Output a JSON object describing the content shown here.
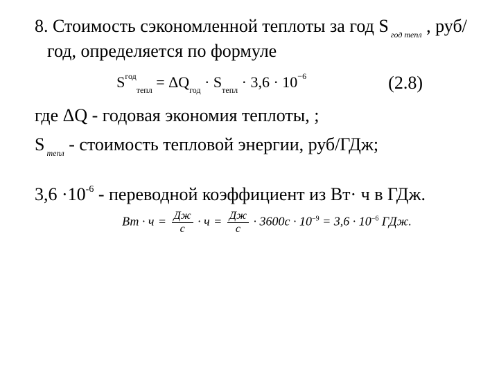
{
  "colors": {
    "text": "#000000",
    "background": "#ffffff"
  },
  "typography": {
    "body_fontsize_pt": 20,
    "eq_fontsize_pt": 16,
    "unit_eq_fontsize_pt": 13,
    "family": "Times New Roman"
  },
  "p1_a": "8. Стоимость сэкономленной теплоты за год S",
  "p1_sub": " год тепл",
  "p1_b": "  , руб/год, определяется по формуле",
  "eq_main_lhs_S": "S",
  "eq_main_lhs_sup": "год",
  "eq_main_lhs_sub": "тепл",
  "eq_main_eq": " = ",
  "eq_main_dQ": "ΔQ",
  "eq_main_dQ_sub": "год",
  "eq_main_dot1": " · ",
  "eq_main_S2": "S",
  "eq_main_S2_sub": "тепл",
  "eq_main_tail": " · 3,6 · 10",
  "eq_main_tail_sup": "−6",
  "eq_number": "(2.8)",
  "p2_a": "где ΔQ",
  "p2_b": "      - годовая экономия теплоты, ;",
  "p3_a": "S",
  "p3_sub": " тепл",
  "p3_b": "   - стоимость тепловой энергии, руб/ГДж;",
  "p4_a": "3,6  ·10",
  "p4_sup": "-6",
  "p4_b": " - переводной коэффициент из Вт· ч в ГДж.",
  "unit_eq": {
    "lhs": "Вт · ч",
    "frac1_num": "Дж",
    "frac1_den": "с",
    "mid1": "· ч",
    "frac2_num": "Дж",
    "frac2_den": "с",
    "mid2": "· 3600с · 10",
    "mid2_sup": "−9",
    "rhs": " = 3,6 · 10",
    "rhs_sup": "−6",
    "tail": " ГДж."
  }
}
